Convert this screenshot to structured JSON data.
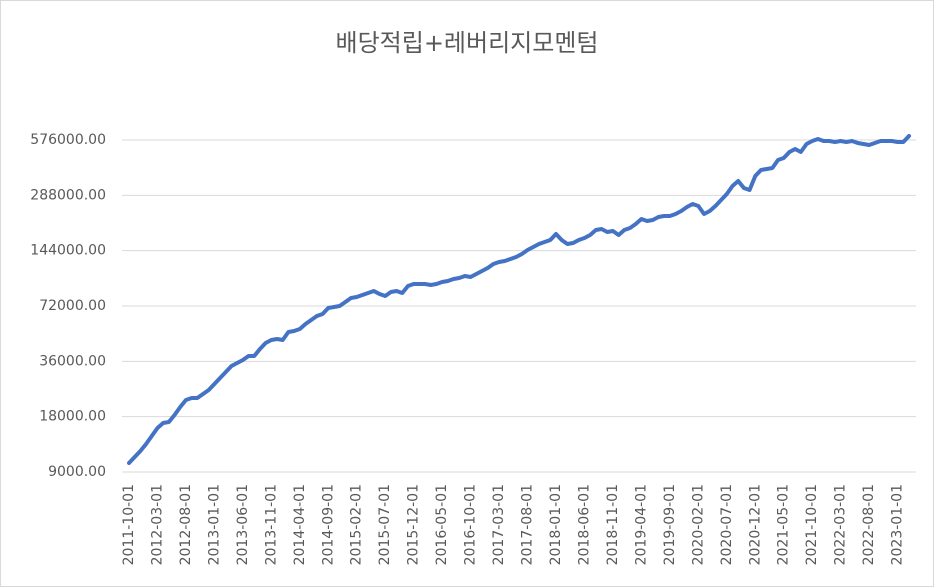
{
  "chart_data": {
    "type": "line",
    "title": "배당적립+레버리지모멘텀",
    "categories": [
      "2011-10-01",
      null,
      null,
      null,
      null,
      "2012-03-01",
      null,
      null,
      null,
      null,
      "2012-08-01",
      null,
      null,
      null,
      null,
      "2013-01-01",
      null,
      null,
      null,
      null,
      "2013-06-01",
      null,
      null,
      null,
      null,
      "2013-11-01",
      null,
      null,
      null,
      null,
      "2014-04-01",
      null,
      null,
      null,
      null,
      "2014-09-01",
      null,
      null,
      null,
      null,
      "2015-02-01",
      null,
      null,
      null,
      null,
      "2015-07-01",
      null,
      null,
      null,
      null,
      "2015-12-01",
      null,
      null,
      null,
      null,
      "2016-05-01",
      null,
      null,
      null,
      null,
      "2016-10-01",
      null,
      null,
      null,
      null,
      "2017-03-01",
      null,
      null,
      null,
      null,
      "2017-08-01",
      null,
      null,
      null,
      null,
      "2018-01-01",
      null,
      null,
      null,
      null,
      "2018-06-01",
      null,
      null,
      null,
      null,
      "2018-11-01",
      null,
      null,
      null,
      null,
      "2019-04-01",
      null,
      null,
      null,
      null,
      "2019-09-01",
      null,
      null,
      null,
      null,
      "2020-02-01",
      null,
      null,
      null,
      null,
      "2020-07-01",
      null,
      null,
      null,
      null,
      "2020-12-01",
      null,
      null,
      null,
      null,
      "2021-05-01",
      null,
      null,
      null,
      null,
      "2021-10-01",
      null,
      null,
      null,
      null,
      "2022-03-01",
      null,
      null,
      null,
      null,
      "2022-08-01",
      null,
      null,
      null,
      null,
      "2023-01-01",
      null,
      null
    ],
    "values": [
      10070,
      10860,
      11710,
      12780,
      14130,
      15620,
      16630,
      16840,
      18380,
      20320,
      22180,
      22740,
      22740,
      23910,
      25140,
      27100,
      29220,
      31500,
      33960,
      35260,
      36610,
      38490,
      38490,
      42020,
      45300,
      47030,
      47620,
      47030,
      51990,
      52640,
      53980,
      57470,
      60420,
      63530,
      65140,
      70220,
      71110,
      72000,
      75700,
      79590,
      80590,
      82640,
      84730,
      86880,
      83680,
      81620,
      85810,
      86880,
      84730,
      92500,
      94850,
      94850,
      94850,
      93670,
      94850,
      97250,
      98490,
      100980,
      102260,
      104850,
      103550,
      107510,
      111630,
      115900,
      121860,
      124960,
      126530,
      129740,
      133030,
      138120,
      145220,
      150790,
      156560,
      160520,
      164610,
      177440,
      164610,
      156560,
      158540,
      164610,
      168770,
      175230,
      186550,
      188920,
      181940,
      184240,
      175230,
      186550,
      191300,
      201120,
      214120,
      208830,
      211460,
      219560,
      222320,
      222320,
      227970,
      236680,
      248860,
      258370,
      251990,
      227970,
      236680,
      251990,
      271650,
      292860,
      323730,
      344700,
      315720,
      307890,
      366930,
      395640,
      400590,
      405630,
      448380,
      459810,
      495720,
      514710,
      495720,
      548010,
      568890,
      583380,
      568890,
      568890,
      561870,
      568890,
      561870,
      568890,
      554850,
      548010,
      541170,
      554850,
      568890,
      568890,
      568890,
      561870,
      561870,
      605790
    ],
    "color": "#4472c4",
    "yscale": "log",
    "ylim": [
      9000,
      576000
    ],
    "yticks": [
      {
        "value": 9000,
        "label": "9000.00"
      },
      {
        "value": 18000,
        "label": "18000.00"
      },
      {
        "value": 36000,
        "label": "36000.00"
      },
      {
        "value": 72000,
        "label": "72000.00"
      },
      {
        "value": 144000,
        "label": "144000.00"
      },
      {
        "value": 288000,
        "label": "288000.00"
      },
      {
        "value": 576000,
        "label": "576000.00"
      }
    ],
    "grid": true
  }
}
